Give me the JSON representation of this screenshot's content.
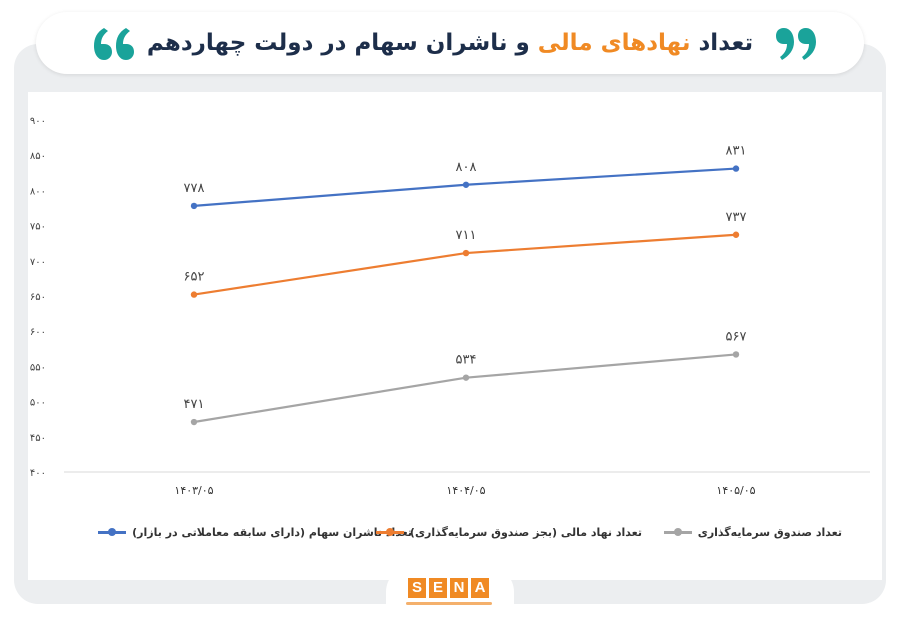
{
  "header": {
    "title_before": "تعداد ",
    "title_accent": "نهادهای مالی",
    "title_after": " و ناشران سهام در دولت چهاردهم"
  },
  "colors": {
    "accent": "#f08a24",
    "quote": "#1aa39a",
    "title": "#1d2e4a"
  },
  "icons": {
    "left_quote": "quote-open-icon",
    "right_quote": "quote-close-icon"
  },
  "chart_data": {
    "type": "line",
    "categories": [
      "۱۴۰۳/۰۵",
      "۱۴۰۴/۰۵",
      "۱۴۰۵/۰۵"
    ],
    "series": [
      {
        "name": "تعداد ناشران سهام (دارای سابقه معاملاتی در بازار)",
        "values": [
          778,
          808,
          831
        ],
        "labels": [
          "۷۷۸",
          "۸۰۸",
          "۸۳۱"
        ],
        "color": "#4472c4"
      },
      {
        "name": "تعداد نهاد مالی (بجز صندوق سرمایه‌گذاری)",
        "values": [
          652,
          711,
          737
        ],
        "labels": [
          "۶۵۲",
          "۷۱۱",
          "۷۳۷"
        ],
        "color": "#ed7d31"
      },
      {
        "name": "تعداد صندوق سرمایه‌گذاری",
        "values": [
          471,
          534,
          567
        ],
        "labels": [
          "۴۷۱",
          "۵۳۴",
          "۵۶۷"
        ],
        "color": "#a5a5a5"
      }
    ],
    "y_ticks": [
      400,
      450,
      500,
      550,
      600,
      650,
      700,
      750,
      800,
      850,
      900
    ],
    "y_tick_labels": [
      "۴۰۰",
      "۴۵۰",
      "۵۰۰",
      "۵۵۰",
      "۶۰۰",
      "۶۵۰",
      "۷۰۰",
      "۷۵۰",
      "۸۰۰",
      "۸۵۰",
      "۹۰۰"
    ],
    "ylim": [
      400,
      900
    ],
    "grid": false,
    "legend_position": "bottom"
  },
  "logo": {
    "letters": [
      "S",
      "E",
      "N",
      "A"
    ]
  }
}
